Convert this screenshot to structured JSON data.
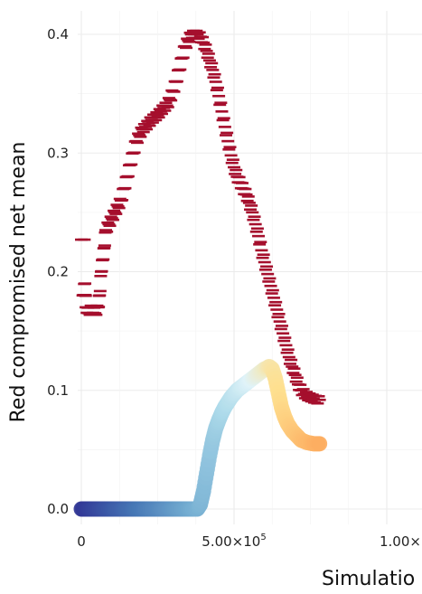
{
  "chart_data": {
    "type": "scatter",
    "ylabel": "Red compromised net mean",
    "xlabel": "Simulatio",
    "xlim": [
      0,
      1030000
    ],
    "ylim": [
      0,
      0.4
    ],
    "y_ticks": [
      {
        "value": 0.0,
        "label": "0.0"
      },
      {
        "value": 0.1,
        "label": "0.1"
      },
      {
        "value": 0.2,
        "label": "0.2"
      },
      {
        "value": 0.3,
        "label": "0.3"
      },
      {
        "value": 0.4,
        "label": "0.4"
      }
    ],
    "x_ticks": [
      {
        "value": 0,
        "label": "0",
        "sup": ""
      },
      {
        "value": 500000,
        "label": "5.00×10",
        "sup": "5"
      },
      {
        "value": 1000000,
        "label": "1.00×",
        "sup": ""
      }
    ],
    "grid": true,
    "series": [
      {
        "marker": "dash",
        "color": "#a50f2d",
        "points": [
          [
            0,
            0.227
          ],
          [
            10000,
            0.227
          ],
          [
            5000,
            0.18
          ],
          [
            12000,
            0.19
          ],
          [
            15000,
            0.17
          ],
          [
            25000,
            0.165
          ],
          [
            35000,
            0.17
          ],
          [
            45000,
            0.165
          ],
          [
            55000,
            0.17
          ],
          [
            60000,
            0.18
          ],
          [
            65000,
            0.2
          ],
          [
            70000,
            0.21
          ],
          [
            75000,
            0.22
          ],
          [
            80000,
            0.235
          ],
          [
            90000,
            0.24
          ],
          [
            100000,
            0.245
          ],
          [
            110000,
            0.25
          ],
          [
            120000,
            0.255
          ],
          [
            130000,
            0.26
          ],
          [
            140000,
            0.27
          ],
          [
            150000,
            0.28
          ],
          [
            160000,
            0.29
          ],
          [
            170000,
            0.3
          ],
          [
            180000,
            0.31
          ],
          [
            190000,
            0.315
          ],
          [
            200000,
            0.32
          ],
          [
            210000,
            0.322
          ],
          [
            220000,
            0.325
          ],
          [
            230000,
            0.328
          ],
          [
            240000,
            0.33
          ],
          [
            250000,
            0.332
          ],
          [
            260000,
            0.335
          ],
          [
            270000,
            0.338
          ],
          [
            280000,
            0.34
          ],
          [
            290000,
            0.345
          ],
          [
            300000,
            0.352
          ],
          [
            310000,
            0.36
          ],
          [
            320000,
            0.37
          ],
          [
            330000,
            0.38
          ],
          [
            340000,
            0.39
          ],
          [
            350000,
            0.395
          ],
          [
            360000,
            0.4
          ],
          [
            370000,
            0.4
          ],
          [
            380000,
            0.4
          ],
          [
            390000,
            0.398
          ],
          [
            400000,
            0.393
          ],
          [
            410000,
            0.386
          ],
          [
            420000,
            0.378
          ],
          [
            430000,
            0.37
          ],
          [
            440000,
            0.36
          ],
          [
            450000,
            0.348
          ],
          [
            460000,
            0.335
          ],
          [
            470000,
            0.322
          ],
          [
            480000,
            0.31
          ],
          [
            490000,
            0.298
          ],
          [
            500000,
            0.288
          ],
          [
            510000,
            0.28
          ],
          [
            520000,
            0.275
          ],
          [
            530000,
            0.27
          ],
          [
            540000,
            0.265
          ],
          [
            550000,
            0.258
          ],
          [
            560000,
            0.25
          ],
          [
            570000,
            0.24
          ],
          [
            580000,
            0.23
          ],
          [
            590000,
            0.218
          ],
          [
            600000,
            0.208
          ],
          [
            610000,
            0.198
          ],
          [
            620000,
            0.188
          ],
          [
            630000,
            0.178
          ],
          [
            640000,
            0.168
          ],
          [
            650000,
            0.158
          ],
          [
            660000,
            0.148
          ],
          [
            670000,
            0.138
          ],
          [
            680000,
            0.128
          ],
          [
            690000,
            0.12
          ],
          [
            700000,
            0.113
          ],
          [
            710000,
            0.105
          ],
          [
            720000,
            0.1
          ],
          [
            730000,
            0.097
          ],
          [
            740000,
            0.095
          ],
          [
            750000,
            0.094
          ],
          [
            760000,
            0.093
          ],
          [
            770000,
            0.092
          ],
          [
            780000,
            0.092
          ]
        ]
      },
      {
        "marker": "circle",
        "colors": [
          "#313695",
          "#4575b4",
          "#74add1",
          "#abd9e9",
          "#e0f3f8",
          "#fee090",
          "#fdae61"
        ],
        "points": [
          [
            0,
            0.0
          ],
          [
            20000,
            0.0
          ],
          [
            40000,
            0.0
          ],
          [
            60000,
            0.0
          ],
          [
            80000,
            0.0
          ],
          [
            100000,
            0.0
          ],
          [
            120000,
            0.0
          ],
          [
            140000,
            0.0
          ],
          [
            160000,
            0.0
          ],
          [
            180000,
            0.0
          ],
          [
            200000,
            0.0
          ],
          [
            220000,
            0.0
          ],
          [
            240000,
            0.0
          ],
          [
            260000,
            0.0
          ],
          [
            280000,
            0.0
          ],
          [
            300000,
            0.0
          ],
          [
            320000,
            0.0
          ],
          [
            340000,
            0.0
          ],
          [
            360000,
            0.0
          ],
          [
            380000,
            0.0
          ],
          [
            390000,
            0.004
          ],
          [
            400000,
            0.015
          ],
          [
            410000,
            0.03
          ],
          [
            420000,
            0.045
          ],
          [
            430000,
            0.058
          ],
          [
            440000,
            0.068
          ],
          [
            450000,
            0.075
          ],
          [
            460000,
            0.081
          ],
          [
            470000,
            0.086
          ],
          [
            480000,
            0.09
          ],
          [
            490000,
            0.094
          ],
          [
            500000,
            0.097
          ],
          [
            510000,
            0.1
          ],
          [
            520000,
            0.102
          ],
          [
            530000,
            0.104
          ],
          [
            540000,
            0.106
          ],
          [
            550000,
            0.108
          ],
          [
            560000,
            0.11
          ],
          [
            570000,
            0.112
          ],
          [
            580000,
            0.114
          ],
          [
            590000,
            0.116
          ],
          [
            600000,
            0.118
          ],
          [
            610000,
            0.119
          ],
          [
            615000,
            0.12
          ],
          [
            625000,
            0.118
          ],
          [
            635000,
            0.11
          ],
          [
            645000,
            0.098
          ],
          [
            655000,
            0.086
          ],
          [
            665000,
            0.078
          ],
          [
            675000,
            0.072
          ],
          [
            690000,
            0.066
          ],
          [
            705000,
            0.062
          ],
          [
            720000,
            0.058
          ],
          [
            740000,
            0.056
          ],
          [
            760000,
            0.055
          ],
          [
            780000,
            0.055
          ]
        ]
      }
    ]
  }
}
